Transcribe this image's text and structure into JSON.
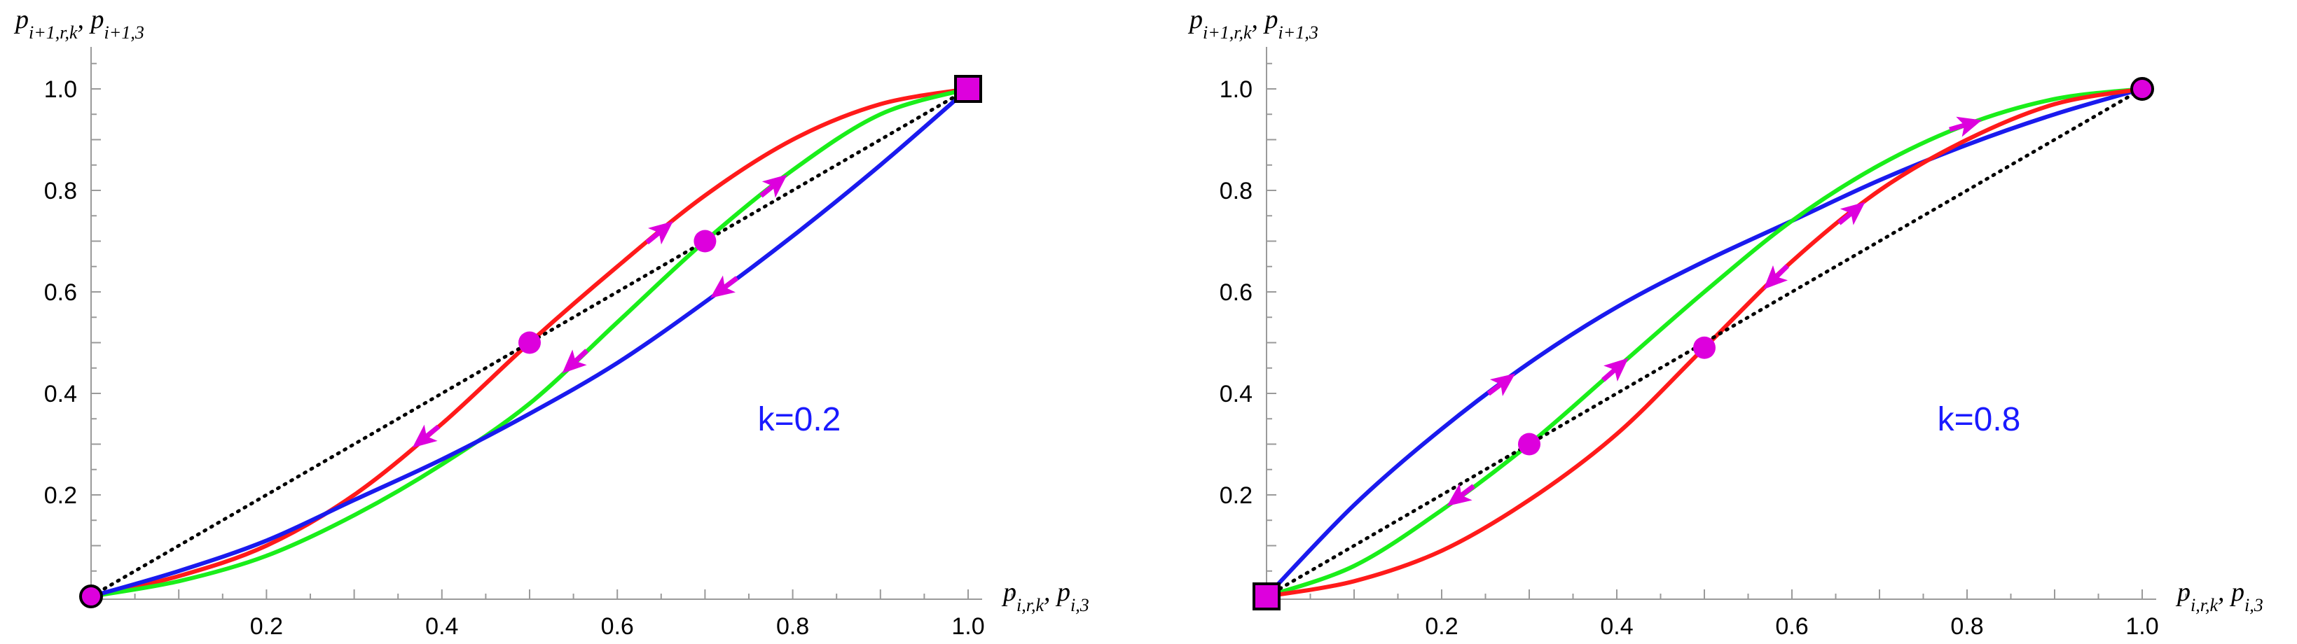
{
  "chart_data": [
    {
      "type": "line",
      "panel": "left",
      "xlim": [
        0,
        1
      ],
      "ylim": [
        0,
        1
      ],
      "xticks": [
        "0.2",
        "0.4",
        "0.6",
        "0.8",
        "1.0"
      ],
      "yticks": [
        "0.2",
        "0.4",
        "0.6",
        "0.8",
        "1.0"
      ],
      "xlabel": {
        "p1": "p",
        "p1sub": "i,r,k",
        "sep": ", ",
        "p2": "p",
        "p2sub": "i,3"
      },
      "ylabel": {
        "p1": "p",
        "p1sub": "i+1,r,k",
        "sep": ", ",
        "p2": "p",
        "p2sub": "i+1,3"
      },
      "annotation": {
        "text": "k=0.2",
        "color": "#1a1aff"
      },
      "series": [
        {
          "name": "red",
          "color": "#ff1a1a",
          "x": [
            0,
            0.1,
            0.2,
            0.3,
            0.4,
            0.5,
            0.6,
            0.7,
            0.8,
            0.9,
            1.0
          ],
          "y": [
            0,
            0.04,
            0.1,
            0.2,
            0.34,
            0.5,
            0.65,
            0.79,
            0.9,
            0.97,
            1.0
          ]
        },
        {
          "name": "green",
          "color": "#1aee1a",
          "x": [
            0,
            0.1,
            0.2,
            0.3,
            0.4,
            0.5,
            0.6,
            0.7,
            0.8,
            0.9,
            1.0
          ],
          "y": [
            0,
            0.03,
            0.08,
            0.16,
            0.26,
            0.38,
            0.54,
            0.7,
            0.84,
            0.95,
            1.0
          ]
        },
        {
          "name": "blue",
          "color": "#1a1aee",
          "x": [
            0,
            0.1,
            0.2,
            0.3,
            0.4,
            0.5,
            0.6,
            0.7,
            0.8,
            0.9,
            1.0
          ],
          "y": [
            0,
            0.05,
            0.11,
            0.19,
            0.27,
            0.36,
            0.46,
            0.58,
            0.71,
            0.85,
            1.0
          ]
        },
        {
          "name": "diagonal",
          "color": "#000000",
          "dashed": true,
          "x": [
            0,
            1
          ],
          "y": [
            0,
            1
          ]
        }
      ],
      "fixed_points": [
        {
          "x": 0,
          "y": 0,
          "shape": "circle",
          "outlined": true
        },
        {
          "x": 0.5,
          "y": 0.5,
          "shape": "circle",
          "outlined": false
        },
        {
          "x": 0.7,
          "y": 0.7,
          "shape": "circle",
          "outlined": false
        },
        {
          "x": 1,
          "y": 1,
          "shape": "square",
          "outlined": true
        }
      ],
      "flow_arrows": [
        {
          "series": "red",
          "x": 0.38,
          "dir": -1
        },
        {
          "series": "red",
          "x": 0.65,
          "dir": 1
        },
        {
          "series": "green",
          "x": 0.55,
          "dir": -1
        },
        {
          "series": "green",
          "x": 0.78,
          "dir": 1
        },
        {
          "series": "blue",
          "x": 0.72,
          "dir": -1
        }
      ],
      "marker_color": "#dd00dd"
    },
    {
      "type": "line",
      "panel": "right",
      "xlim": [
        0,
        1
      ],
      "ylim": [
        0,
        1
      ],
      "xticks": [
        "0.2",
        "0.4",
        "0.6",
        "0.8",
        "1.0"
      ],
      "yticks": [
        "0.2",
        "0.4",
        "0.6",
        "0.8",
        "1.0"
      ],
      "xlabel": {
        "p1": "p",
        "p1sub": "i,r,k",
        "sep": ", ",
        "p2": "p",
        "p2sub": "i,3"
      },
      "ylabel": {
        "p1": "p",
        "p1sub": "i+1,r,k",
        "sep": ", ",
        "p2": "p",
        "p2sub": "i+1,3"
      },
      "annotation": {
        "text": "k=0.8",
        "color": "#1a1aff"
      },
      "series": [
        {
          "name": "blue",
          "color": "#1a1aee",
          "x": [
            0,
            0.1,
            0.2,
            0.3,
            0.4,
            0.5,
            0.6,
            0.7,
            0.8,
            0.9,
            1.0
          ],
          "y": [
            0,
            0.18,
            0.33,
            0.46,
            0.57,
            0.66,
            0.74,
            0.82,
            0.89,
            0.95,
            1.0
          ]
        },
        {
          "name": "green",
          "color": "#1aee1a",
          "x": [
            0,
            0.1,
            0.2,
            0.3,
            0.4,
            0.5,
            0.6,
            0.7,
            0.8,
            0.9,
            1.0
          ],
          "y": [
            0,
            0.06,
            0.17,
            0.3,
            0.45,
            0.6,
            0.74,
            0.85,
            0.93,
            0.98,
            1.0
          ]
        },
        {
          "name": "red",
          "color": "#ff1a1a",
          "x": [
            0,
            0.1,
            0.2,
            0.3,
            0.4,
            0.5,
            0.6,
            0.7,
            0.8,
            0.9,
            1.0
          ],
          "y": [
            0,
            0.03,
            0.09,
            0.19,
            0.32,
            0.49,
            0.66,
            0.8,
            0.9,
            0.97,
            1.0
          ]
        },
        {
          "name": "diagonal",
          "color": "#000000",
          "dashed": true,
          "x": [
            0,
            1
          ],
          "y": [
            0,
            1
          ]
        }
      ],
      "fixed_points": [
        {
          "x": 0,
          "y": 0,
          "shape": "square",
          "outlined": true
        },
        {
          "x": 0.3,
          "y": 0.3,
          "shape": "circle",
          "outlined": false
        },
        {
          "x": 0.5,
          "y": 0.49,
          "shape": "circle",
          "outlined": false
        },
        {
          "x": 1,
          "y": 1,
          "shape": "circle",
          "outlined": true
        }
      ],
      "flow_arrows": [
        {
          "series": "blue",
          "x": 0.27,
          "dir": 1
        },
        {
          "series": "green",
          "x": 0.22,
          "dir": -1
        },
        {
          "series": "green",
          "x": 0.4,
          "dir": 1
        },
        {
          "series": "green",
          "x": 0.8,
          "dir": 1
        },
        {
          "series": "red",
          "x": 0.58,
          "dir": -1
        },
        {
          "series": "red",
          "x": 0.67,
          "dir": 1
        }
      ],
      "marker_color": "#dd00dd"
    }
  ]
}
